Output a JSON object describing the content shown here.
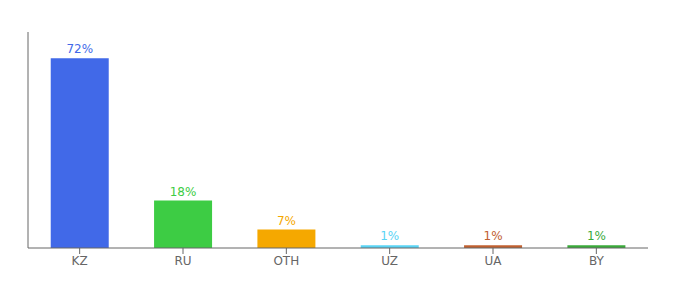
{
  "chart_data": {
    "type": "bar",
    "categories": [
      "KZ",
      "RU",
      "OTH",
      "UZ",
      "UA",
      "BY"
    ],
    "values": [
      72,
      18,
      7,
      1,
      1,
      1
    ],
    "value_labels": [
      "72%",
      "18%",
      "7%",
      "1%",
      "1%",
      "1%"
    ],
    "data_labels": true,
    "colors": [
      "#4169E8",
      "#3dcc44",
      "#f5a800",
      "#5ad4f5",
      "#c06030",
      "#3aaa3a"
    ],
    "ylim": [
      0,
      82
    ],
    "grid": false,
    "tick_labels": "x"
  }
}
